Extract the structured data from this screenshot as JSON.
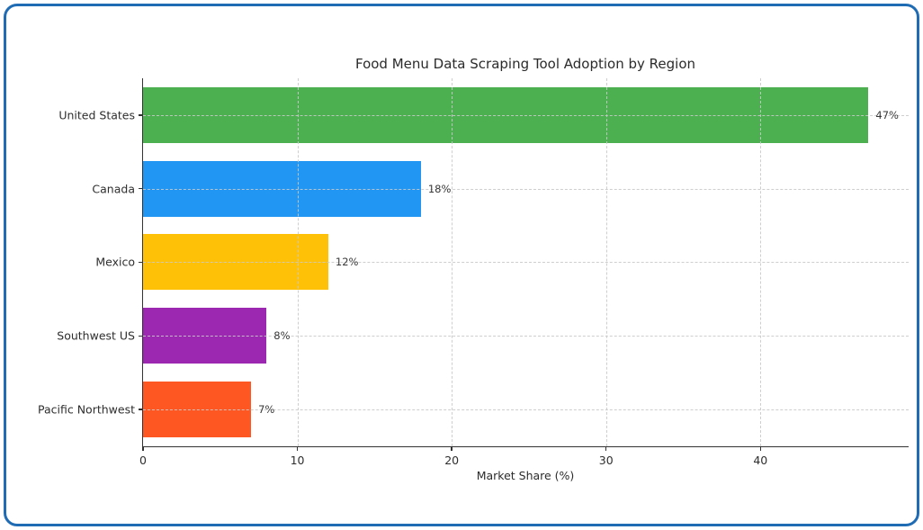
{
  "frame": {
    "border_color": "#1f6cb5",
    "background": "#ffffff"
  },
  "chart_data": {
    "type": "bar",
    "orientation": "horizontal",
    "title": "Food Menu Data Scraping Tool Adoption by Region",
    "xlabel": "Market Share (%)",
    "ylabel": "",
    "categories": [
      "United States",
      "Canada",
      "Mexico",
      "Southwest US",
      "Pacific Northwest"
    ],
    "values": [
      47,
      18,
      12,
      8,
      7
    ],
    "value_labels": [
      "47%",
      "18%",
      "12%",
      "8%",
      "7%"
    ],
    "bar_colors": [
      "#4caf50",
      "#2196f3",
      "#ffc107",
      "#9c27b0",
      "#ff5722"
    ],
    "xticks": [
      0,
      10,
      20,
      30,
      40
    ],
    "xtick_labels": [
      "0",
      "10",
      "20",
      "30",
      "40"
    ],
    "xlim": [
      0,
      49.6
    ],
    "grid": "dashed",
    "grid_color": "#c9c9c9",
    "axis_color": "#333333",
    "text_color": "#2e2e2e",
    "legend": "none"
  }
}
